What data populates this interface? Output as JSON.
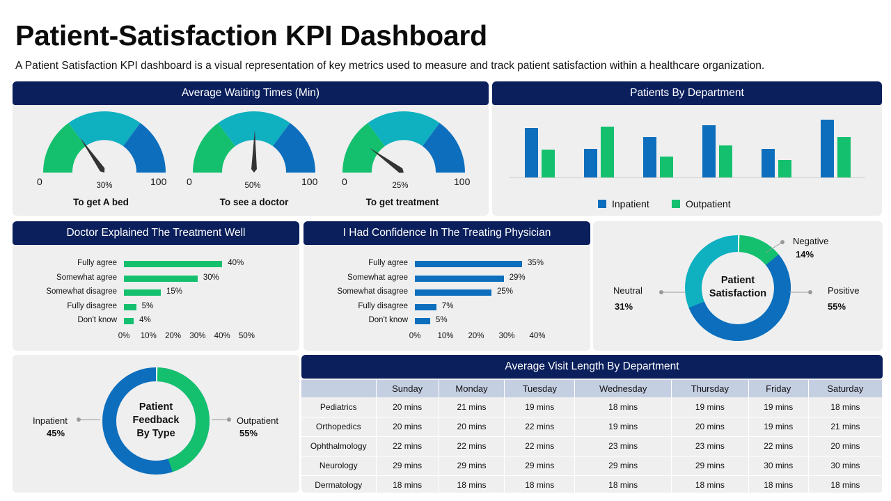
{
  "title": "Patient-Satisfaction KPI Dashboard",
  "subtitle": "A Patient Satisfaction KPI dashboard is a visual representation of key metrics used to measure and track patient satisfaction within a healthcare organization.",
  "colors": {
    "navy": "#0a1f5c",
    "green": "#14c06e",
    "teal": "#0fb0c0",
    "blue": "#0d6ebd"
  },
  "waiting": {
    "title": "Average Waiting Times (Min)",
    "min_label": "0",
    "max_label": "100",
    "gauges": [
      {
        "name": "To get A bed",
        "pct_label": "30%",
        "value": 30
      },
      {
        "name": "To see a doctor",
        "pct_label": "50%",
        "value": 50
      },
      {
        "name": "To get treatment",
        "pct_label": "25%",
        "value": 25
      }
    ]
  },
  "departments": {
    "title": "Patients By Department",
    "legend": [
      "Inpatient",
      "Outpatient"
    ]
  },
  "doctor_explained": {
    "title": "Doctor Explained The Treatment Well",
    "categories": [
      "Fully agree",
      "Somewhat agree",
      "Somewhat disagree",
      "Fully disagree",
      "Don't know"
    ],
    "values": [
      40,
      30,
      15,
      5,
      4
    ],
    "value_labels": [
      "40%",
      "30%",
      "15%",
      "5%",
      "4%"
    ],
    "ticks": [
      "0%",
      "10%",
      "20%",
      "30%",
      "40%",
      "50%"
    ],
    "max": 50
  },
  "confidence": {
    "title": "I Had Confidence In The Treating Physician",
    "categories": [
      "Fully agree",
      "Somewhat agree",
      "Somewhat disagree",
      "Fully disagree",
      "Don't know"
    ],
    "values": [
      35,
      29,
      25,
      7,
      5
    ],
    "value_labels": [
      "35%",
      "29%",
      "25%",
      "7%",
      "5%"
    ],
    "ticks": [
      "0%",
      "10%",
      "20%",
      "30%",
      "40%"
    ],
    "max": 40
  },
  "satisfaction": {
    "center_line1": "Patient",
    "center_line2": "Satisfaction",
    "negative_label": "Negative",
    "negative_value": "14%",
    "neutral_label": "Neutral",
    "neutral_value": "31%",
    "positive_label": "Positive",
    "positive_value": "55%"
  },
  "feedback": {
    "center_line1": "Patient",
    "center_line2": "Feedback",
    "center_line3": "By Type",
    "inpatient_label": "Inpatient",
    "inpatient_value": "45%",
    "outpatient_label": "Outpatient",
    "outpatient_value": "55%"
  },
  "visit_length": {
    "title": "Average Visit Length By Department",
    "days": [
      "Sunday",
      "Monday",
      "Tuesday",
      "Wednesday",
      "Thursday",
      "Friday",
      "Saturday"
    ],
    "rows": [
      {
        "dept": "Pediatrics",
        "values": [
          "20 mins",
          "21 mins",
          "19 mins",
          "18 mins",
          "19 mins",
          "19 mins",
          "18 mins"
        ]
      },
      {
        "dept": "Orthopedics",
        "values": [
          "20 mins",
          "20 mins",
          "22 mins",
          "19  mins",
          "20  mins",
          "19  mins",
          "21  mins"
        ]
      },
      {
        "dept": "Ophthalmology",
        "values": [
          "22 mins",
          "22 mins",
          "22 mins",
          "23 mins",
          "23 mins",
          "22 mins",
          "20 mins"
        ]
      },
      {
        "dept": "Neurology",
        "values": [
          "29 mins",
          "29 mins",
          "29 mins",
          "29 mins",
          "29 mins",
          "30 mins",
          "30 mins"
        ]
      },
      {
        "dept": "Dermatology",
        "values": [
          "18 mins",
          "18 mins",
          "18 mins",
          "18 mins",
          "18 mins",
          "18 mins",
          "18 mins"
        ]
      }
    ]
  }
}
